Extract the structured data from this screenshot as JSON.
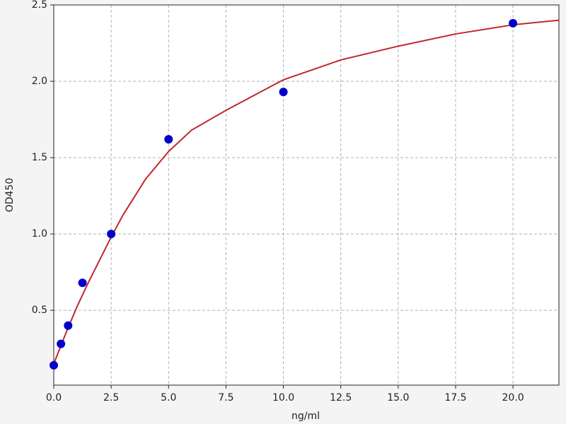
{
  "chart_data": {
    "type": "scatter",
    "xlabel": "ng/ml",
    "ylabel": "OD450",
    "xlim": [
      0,
      22
    ],
    "ylim": [
      0.01,
      2.5
    ],
    "xticks": [
      {
        "value": 0,
        "label": "0.0"
      },
      2.5,
      {
        "value": 5,
        "label": "5.0"
      },
      7.5,
      {
        "value": 10,
        "label": "10.0"
      },
      12.5,
      {
        "value": 15,
        "label": "15.0"
      },
      17.5,
      {
        "value": 20,
        "label": "20.0"
      }
    ],
    "yticks": [
      0.5,
      {
        "value": 1,
        "label": "1.0"
      },
      1.5,
      {
        "value": 2,
        "label": "2.0"
      },
      2.5
    ],
    "grid": true,
    "series": [
      {
        "type": "line",
        "color": "#c0282d",
        "x": [
          0,
          0.5,
          1,
          1.5,
          2,
          2.5,
          3,
          4,
          5,
          6,
          7.5,
          10,
          12.5,
          15,
          17.5,
          20,
          22
        ],
        "values": [
          0.15,
          0.34,
          0.52,
          0.68,
          0.83,
          0.98,
          1.12,
          1.36,
          1.54,
          1.68,
          1.81,
          2.01,
          2.14,
          2.23,
          2.31,
          2.37,
          2.4
        ]
      },
      {
        "type": "scatter",
        "color": "#0000cc",
        "x": [
          0,
          0.3125,
          0.625,
          1.25,
          2.5,
          5,
          10,
          20
        ],
        "values": [
          0.14,
          0.28,
          0.4,
          0.68,
          1.0,
          1.62,
          1.93,
          2.38
        ]
      }
    ]
  }
}
